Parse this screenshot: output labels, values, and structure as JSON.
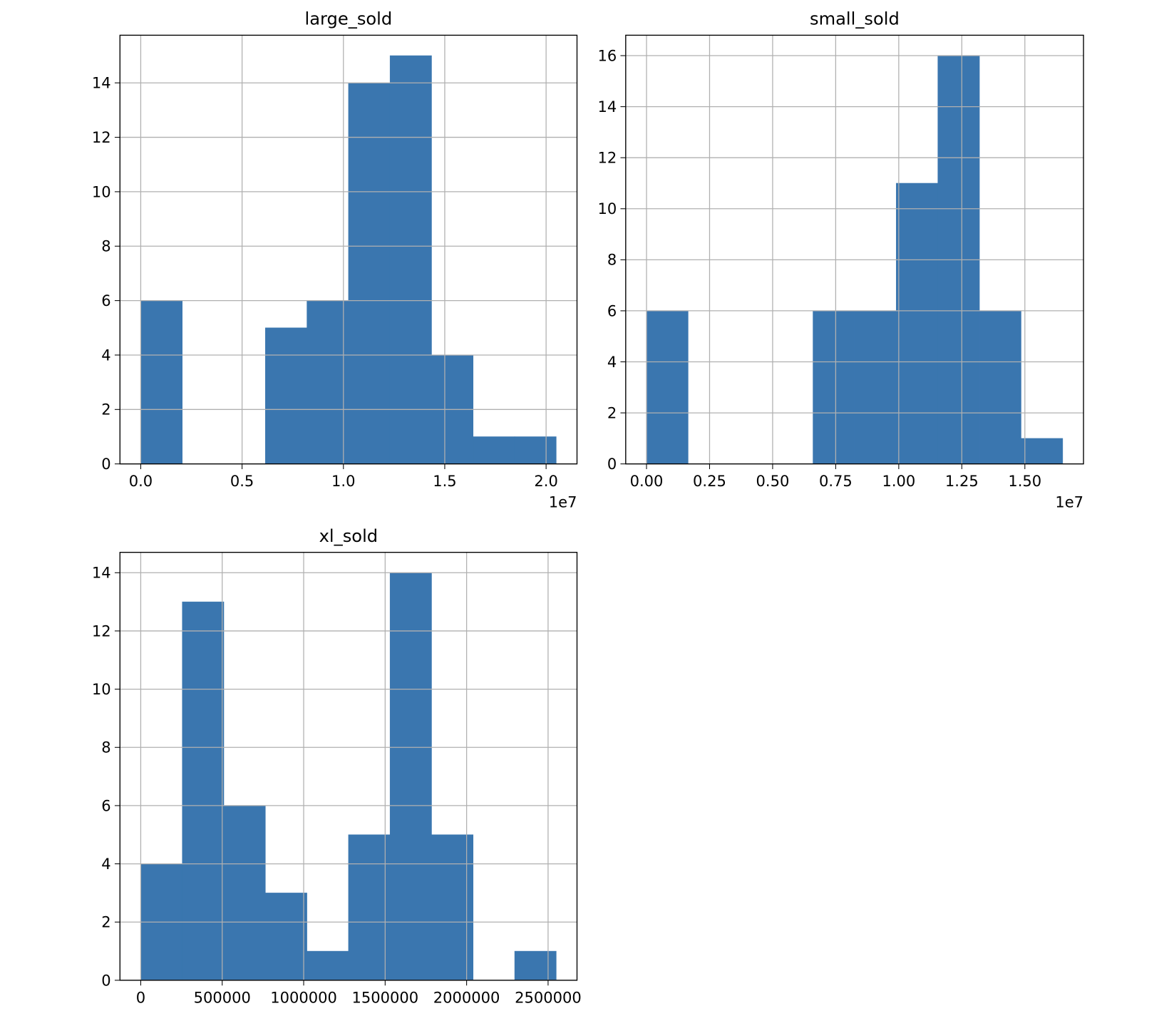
{
  "chart_data": [
    {
      "type": "histogram",
      "title": "large_sold",
      "bins": [
        0,
        2050000,
        4100000,
        6150000,
        8200000,
        10250000,
        12300000,
        14350000,
        16400000,
        18450000,
        20500000
      ],
      "values": [
        6,
        0,
        0,
        5,
        6,
        14,
        15,
        4,
        1,
        1
      ],
      "color": "#3a76af",
      "grid": true,
      "xlim": [
        -1025000,
        21525000
      ],
      "xticks": [
        {
          "value": 0,
          "label": "0.0"
        },
        {
          "value": 5000000,
          "label": "0.5"
        },
        {
          "value": 10000000,
          "label": "1.0"
        },
        {
          "value": 15000000,
          "label": "1.5"
        },
        {
          "value": 20000000,
          "label": "2.0"
        }
      ],
      "offset_text": "1e7",
      "ylim": [
        0,
        15.75
      ],
      "yticks": [
        0,
        2,
        4,
        6,
        8,
        10,
        12,
        14
      ]
    },
    {
      "type": "histogram",
      "title": "small_sold",
      "bins": [
        0,
        1650000,
        3300000,
        4950000,
        6600000,
        8250000,
        9900000,
        11550000,
        13200000,
        14850000,
        16500000
      ],
      "values": [
        6,
        0,
        0,
        0,
        6,
        6,
        11,
        16,
        6,
        1
      ],
      "color": "#3a76af",
      "grid": true,
      "xlim": [
        -825000,
        17325000
      ],
      "xticks": [
        {
          "value": 0,
          "label": "0.00"
        },
        {
          "value": 2500000,
          "label": "0.25"
        },
        {
          "value": 5000000,
          "label": "0.50"
        },
        {
          "value": 7500000,
          "label": "0.75"
        },
        {
          "value": 10000000,
          "label": "1.00"
        },
        {
          "value": 12500000,
          "label": "1.25"
        },
        {
          "value": 15000000,
          "label": "1.50"
        }
      ],
      "offset_text": "1e7",
      "ylim": [
        0,
        16.8
      ],
      "yticks": [
        0,
        2,
        4,
        6,
        8,
        10,
        12,
        14,
        16
      ]
    },
    {
      "type": "histogram",
      "title": "xl_sold",
      "bins": [
        0,
        255000,
        510000,
        765000,
        1020000,
        1275000,
        1530000,
        1785000,
        2040000,
        2295000,
        2550000
      ],
      "values": [
        4,
        13,
        6,
        3,
        1,
        5,
        14,
        5,
        0,
        1
      ],
      "color": "#3a76af",
      "grid": true,
      "xlim": [
        -127500,
        2677500
      ],
      "xticks": [
        0,
        500000,
        1000000,
        1500000,
        2000000,
        2500000
      ],
      "ylim": [
        0,
        14.7
      ],
      "yticks": [
        0,
        2,
        4,
        6,
        8,
        10,
        12,
        14
      ]
    }
  ]
}
